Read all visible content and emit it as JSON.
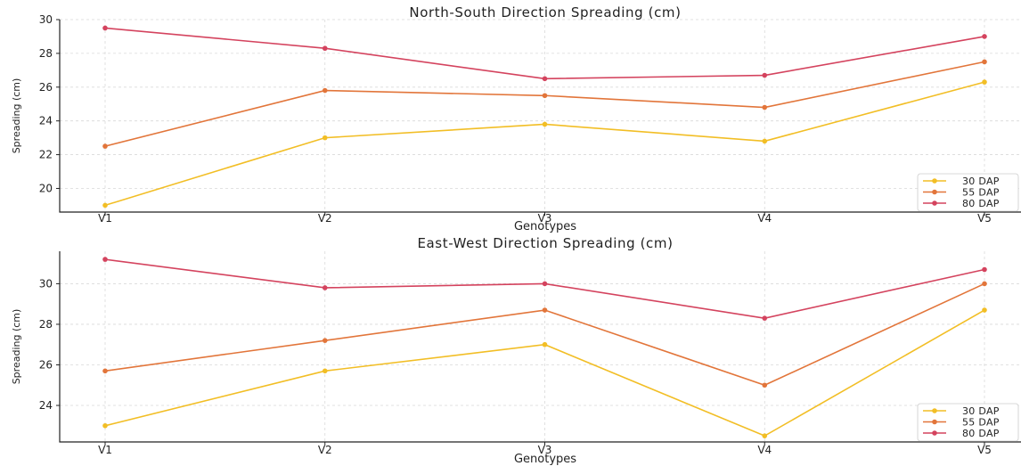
{
  "chart_data": [
    {
      "type": "line",
      "title": "North-South Direction Spreading (cm)",
      "xlabel": "Genotypes",
      "ylabel": "Spreading (cm)",
      "categories": [
        "V1",
        "V2",
        "V3",
        "V4",
        "V5"
      ],
      "ylim": [
        18.6,
        30
      ],
      "yticks": [
        20,
        22,
        24,
        26,
        28,
        30
      ],
      "grid": true,
      "legend_position": "bottom-right",
      "series": [
        {
          "name": "30 DAP",
          "color": "#f2be25",
          "values": [
            19.0,
            23.0,
            23.8,
            22.8,
            26.3
          ]
        },
        {
          "name": "55 DAP",
          "color": "#e2753a",
          "values": [
            22.5,
            25.8,
            25.5,
            24.8,
            27.5
          ]
        },
        {
          "name": "80 DAP",
          "color": "#d4435e",
          "values": [
            29.5,
            28.3,
            26.5,
            26.7,
            29.0
          ]
        }
      ]
    },
    {
      "type": "line",
      "title": "East-West Direction Spreading (cm)",
      "xlabel": "Genotypes",
      "ylabel": "Spreading (cm)",
      "categories": [
        "V1",
        "V2",
        "V3",
        "V4",
        "V5"
      ],
      "ylim": [
        22.2,
        31.6
      ],
      "yticks": [
        24,
        26,
        28,
        30
      ],
      "grid": true,
      "legend_position": "bottom-right",
      "series": [
        {
          "name": "30 DAP",
          "color": "#f2be25",
          "values": [
            23.0,
            25.7,
            27.0,
            22.5,
            28.7
          ]
        },
        {
          "name": "55 DAP",
          "color": "#e2753a",
          "values": [
            25.7,
            27.2,
            28.7,
            25.0,
            30.0
          ]
        },
        {
          "name": "80 DAP",
          "color": "#d4435e",
          "values": [
            31.2,
            29.8,
            30.0,
            28.3,
            30.7
          ]
        }
      ]
    }
  ]
}
